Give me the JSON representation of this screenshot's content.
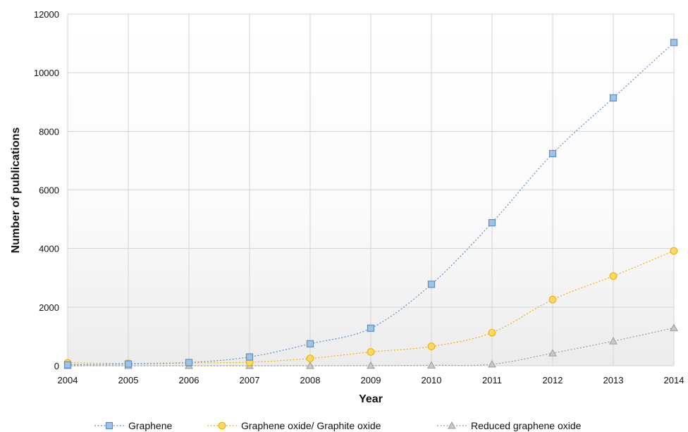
{
  "chart_data": {
    "type": "line",
    "xlabel": "Year",
    "ylabel": "Number of publications",
    "x": [
      2004,
      2005,
      2006,
      2007,
      2008,
      2009,
      2010,
      2011,
      2012,
      2013,
      2014
    ],
    "xlim": [
      2004,
      2014
    ],
    "ylim": [
      0,
      12000
    ],
    "y_ticks": [
      0,
      2000,
      4000,
      6000,
      8000,
      10000,
      12000
    ],
    "grid": true,
    "legend_position": "bottom",
    "series": [
      {
        "name": "Graphene",
        "marker": "square",
        "color": "#9dc3e6",
        "stroke": "#5b8fc9",
        "values": [
          30,
          60,
          110,
          300,
          750,
          1280,
          2780,
          4880,
          7240,
          9140,
          11030
        ]
      },
      {
        "name": "Graphene oxide/ Graphite oxide",
        "marker": "circle",
        "color": "#ffd966",
        "stroke": "#f0b400",
        "values": [
          100,
          80,
          100,
          120,
          250,
          470,
          660,
          1130,
          2260,
          3060,
          3920
        ]
      },
      {
        "name": "Reduced graphene oxide",
        "marker": "triangle",
        "color": "#c9c9c9",
        "stroke": "#9a9a9a",
        "values": [
          0,
          0,
          0,
          0,
          0,
          5,
          15,
          50,
          430,
          840,
          1290
        ]
      }
    ]
  }
}
